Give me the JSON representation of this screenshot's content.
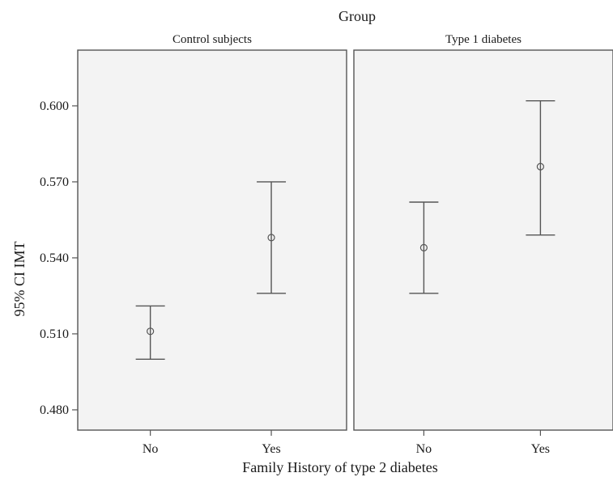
{
  "chart_data": {
    "type": "error-bar",
    "title": "Group",
    "xlabel": "Family History of type 2 diabetes",
    "ylabel": "95% CI IMT",
    "ylim": [
      0.472,
      0.622
    ],
    "yticks": [
      "0.480",
      "0.510",
      "0.540",
      "0.570",
      "0.600"
    ],
    "categories": [
      "No",
      "Yes"
    ],
    "panels": [
      {
        "name": "Control subjects",
        "points": [
          {
            "category": "No",
            "mean": 0.511,
            "lower": 0.5,
            "upper": 0.521
          },
          {
            "category": "Yes",
            "mean": 0.548,
            "lower": 0.526,
            "upper": 0.57
          }
        ]
      },
      {
        "name": "Type 1 diabetes",
        "points": [
          {
            "category": "No",
            "mean": 0.544,
            "lower": 0.526,
            "upper": 0.562
          },
          {
            "category": "Yes",
            "mean": 0.576,
            "lower": 0.549,
            "upper": 0.602
          }
        ]
      }
    ]
  }
}
